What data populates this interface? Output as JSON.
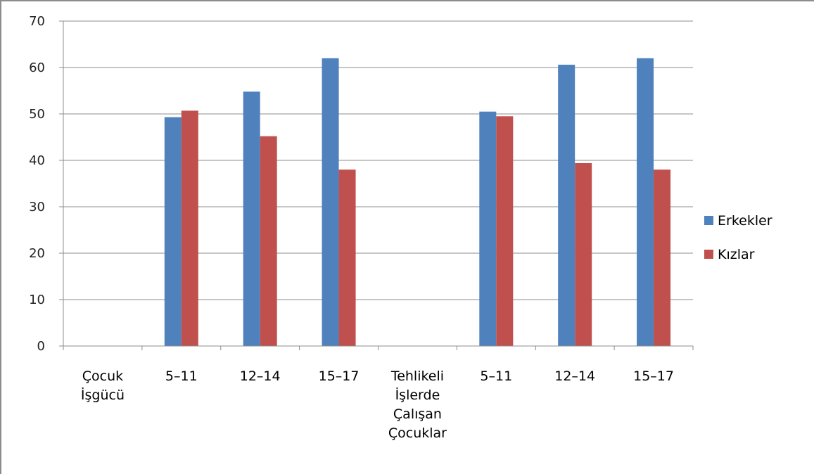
{
  "chart_data": {
    "type": "bar",
    "categories": [
      [
        "Çocuk",
        "İşgücü"
      ],
      [
        "5–11"
      ],
      [
        "12–14"
      ],
      [
        "15–17"
      ],
      [
        "Tehlikeli",
        "İşlerde",
        "Çalışan",
        "Çocuklar"
      ],
      [
        "5–11"
      ],
      [
        "12–14"
      ],
      [
        "15–17"
      ]
    ],
    "series": [
      {
        "name": "Erkekler",
        "color": "#4f81bd",
        "values": [
          null,
          49.3,
          54.8,
          62.0,
          null,
          50.5,
          60.6,
          62.0
        ]
      },
      {
        "name": "Kızlar",
        "color": "#c0504d",
        "values": [
          null,
          50.7,
          45.2,
          38.0,
          null,
          49.5,
          39.4,
          38.0
        ]
      }
    ],
    "ylim": [
      0,
      70
    ],
    "yticks": [
      0,
      10,
      20,
      30,
      40,
      50,
      60,
      70
    ],
    "grid": true,
    "legend": "right"
  }
}
